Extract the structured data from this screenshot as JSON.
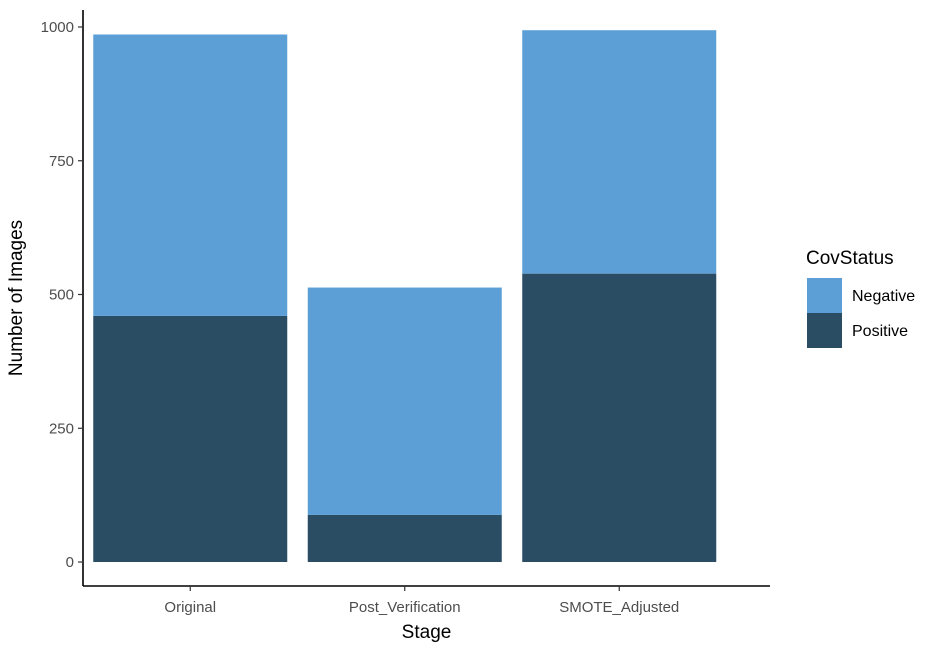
{
  "chart_data": {
    "type": "bar",
    "stacked": true,
    "categories": [
      "Original",
      "Post_Verification",
      "SMOTE_Adjusted"
    ],
    "series": [
      {
        "name": "Positive",
        "values": [
          460,
          88,
          539
        ],
        "color": "#2b4d63"
      },
      {
        "name": "Negative",
        "values": [
          526,
          425,
          455
        ],
        "color": "#5b9fd6"
      }
    ],
    "xlabel": "Stage",
    "ylabel": "Number of Images",
    "ylim": [
      0,
      1000
    ],
    "yticks": [
      0,
      250,
      500,
      750,
      1000
    ],
    "legend": {
      "title": "CovStatus",
      "placement": "right",
      "order": [
        "Negative",
        "Positive"
      ]
    },
    "grid": false
  }
}
